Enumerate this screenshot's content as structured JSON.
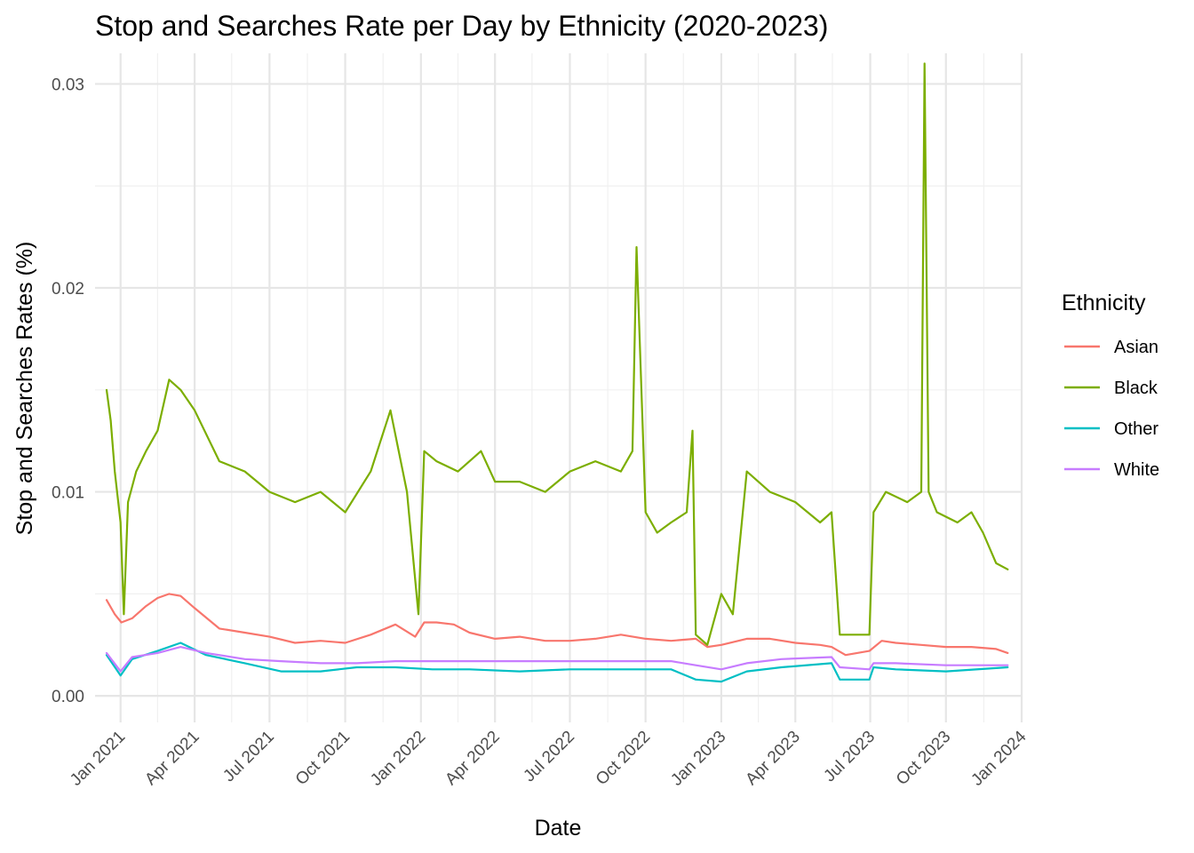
{
  "chart_data": {
    "type": "line",
    "title": "Stop and Searches Rate per Day by Ethnicity (2020-2023)",
    "xlabel": "Date",
    "ylabel": "Stop and Searches Rates (%)",
    "x_range": [
      "2020-12-01",
      "2024-01-01"
    ],
    "ylim": [
      -0.0013,
      0.0315
    ],
    "y_ticks": [
      0.0,
      0.01,
      0.02,
      0.03
    ],
    "y_tick_labels": [
      "0.00",
      "0.01",
      "0.02",
      "0.03"
    ],
    "x_ticks": [
      "2021-01-01",
      "2021-04-01",
      "2021-07-01",
      "2021-10-01",
      "2022-01-01",
      "2022-04-01",
      "2022-07-01",
      "2022-10-01",
      "2023-01-01",
      "2023-04-01",
      "2023-07-01",
      "2023-10-01",
      "2024-01-01"
    ],
    "x_tick_labels": [
      "Jan 2021",
      "Apr 2021",
      "Jul 2021",
      "Oct 2021",
      "Jan 2022",
      "Apr 2022",
      "Jul 2022",
      "Oct 2022",
      "Jan 2023",
      "Apr 2023",
      "Jul 2023",
      "Oct 2023",
      "Jan 2024"
    ],
    "grid": true,
    "legend": {
      "title": "Ethnicity",
      "position": "right"
    },
    "series": [
      {
        "name": "Asian",
        "color": "#F8766D",
        "x": [
          "2020-12-15",
          "2020-12-25",
          "2021-01-02",
          "2021-01-15",
          "2021-02-01",
          "2021-02-15",
          "2021-03-01",
          "2021-03-15",
          "2021-04-01",
          "2021-05-01",
          "2021-06-01",
          "2021-07-01",
          "2021-08-01",
          "2021-09-01",
          "2021-10-01",
          "2021-11-01",
          "2021-12-01",
          "2021-12-25",
          "2022-01-05",
          "2022-01-20",
          "2022-02-10",
          "2022-03-01",
          "2022-04-01",
          "2022-05-01",
          "2022-06-01",
          "2022-07-01",
          "2022-08-01",
          "2022-09-01",
          "2022-10-01",
          "2022-11-01",
          "2022-12-01",
          "2022-12-15",
          "2023-01-01",
          "2023-02-01",
          "2023-03-01",
          "2023-04-01",
          "2023-05-01",
          "2023-05-15",
          "2023-06-01",
          "2023-06-30",
          "2023-07-15",
          "2023-08-01",
          "2023-09-01",
          "2023-10-01",
          "2023-11-01",
          "2023-12-01",
          "2023-12-15"
        ],
        "values": [
          0.0047,
          0.004,
          0.0036,
          0.0038,
          0.0044,
          0.0048,
          0.005,
          0.0049,
          0.0043,
          0.0033,
          0.0031,
          0.0029,
          0.0026,
          0.0027,
          0.0026,
          0.003,
          0.0035,
          0.0029,
          0.0036,
          0.0036,
          0.0035,
          0.0031,
          0.0028,
          0.0029,
          0.0027,
          0.0027,
          0.0028,
          0.003,
          0.0028,
          0.0027,
          0.0028,
          0.0024,
          0.0025,
          0.0028,
          0.0028,
          0.0026,
          0.0025,
          0.0024,
          0.002,
          0.0022,
          0.0027,
          0.0026,
          0.0025,
          0.0024,
          0.0024,
          0.0023,
          0.0021
        ]
      },
      {
        "name": "Black",
        "color": "#7CAE00",
        "x": [
          "2020-12-15",
          "2020-12-20",
          "2020-12-25",
          "2021-01-01",
          "2021-01-05",
          "2021-01-10",
          "2021-01-20",
          "2021-02-01",
          "2021-02-15",
          "2021-03-01",
          "2021-03-15",
          "2021-04-01",
          "2021-05-01",
          "2021-06-01",
          "2021-07-01",
          "2021-08-01",
          "2021-09-01",
          "2021-10-01",
          "2021-11-01",
          "2021-11-25",
          "2021-12-15",
          "2021-12-29",
          "2022-01-05",
          "2022-01-20",
          "2022-02-15",
          "2022-03-15",
          "2022-04-01",
          "2022-05-01",
          "2022-06-01",
          "2022-07-01",
          "2022-08-01",
          "2022-09-01",
          "2022-09-15",
          "2022-09-20",
          "2022-10-01",
          "2022-10-15",
          "2022-11-01",
          "2022-11-20",
          "2022-11-27",
          "2022-12-01",
          "2022-12-15",
          "2023-01-01",
          "2023-01-15",
          "2023-02-01",
          "2023-03-01",
          "2023-04-01",
          "2023-05-01",
          "2023-05-15",
          "2023-05-25",
          "2023-06-10",
          "2023-06-30",
          "2023-07-05",
          "2023-07-20",
          "2023-08-15",
          "2023-09-01",
          "2023-09-05",
          "2023-09-10",
          "2023-09-20",
          "2023-10-15",
          "2023-11-01",
          "2023-11-15",
          "2023-12-01",
          "2023-12-15"
        ],
        "values": [
          0.015,
          0.0135,
          0.011,
          0.0085,
          0.004,
          0.0095,
          0.011,
          0.012,
          0.013,
          0.0155,
          0.015,
          0.014,
          0.0115,
          0.011,
          0.01,
          0.0095,
          0.01,
          0.009,
          0.011,
          0.014,
          0.01,
          0.004,
          0.012,
          0.0115,
          0.011,
          0.012,
          0.0105,
          0.0105,
          0.01,
          0.011,
          0.0115,
          0.011,
          0.012,
          0.022,
          0.009,
          0.008,
          0.0085,
          0.009,
          0.013,
          0.003,
          0.0025,
          0.005,
          0.004,
          0.011,
          0.01,
          0.0095,
          0.0085,
          0.009,
          0.003,
          0.003,
          0.003,
          0.009,
          0.01,
          0.0095,
          0.01,
          0.031,
          0.01,
          0.009,
          0.0085,
          0.009,
          0.008,
          0.0065,
          0.0062
        ]
      },
      {
        "name": "Other",
        "color": "#00BFC4",
        "x": [
          "2020-12-15",
          "2021-01-01",
          "2021-01-15",
          "2021-02-15",
          "2021-03-15",
          "2021-04-15",
          "2021-06-01",
          "2021-07-15",
          "2021-09-01",
          "2021-10-15",
          "2021-12-01",
          "2022-01-15",
          "2022-03-01",
          "2022-05-01",
          "2022-07-01",
          "2022-09-01",
          "2022-11-01",
          "2022-12-01",
          "2023-01-01",
          "2023-02-01",
          "2023-03-15",
          "2023-05-15",
          "2023-05-25",
          "2023-06-30",
          "2023-07-05",
          "2023-08-01",
          "2023-10-01",
          "2023-12-15"
        ],
        "values": [
          0.002,
          0.001,
          0.0018,
          0.0022,
          0.0026,
          0.002,
          0.0016,
          0.0012,
          0.0012,
          0.0014,
          0.0014,
          0.0013,
          0.0013,
          0.0012,
          0.0013,
          0.0013,
          0.0013,
          0.0008,
          0.0007,
          0.0012,
          0.0014,
          0.0016,
          0.0008,
          0.0008,
          0.0014,
          0.0013,
          0.0012,
          0.0014
        ]
      },
      {
        "name": "White",
        "color": "#C77CFF",
        "x": [
          "2020-12-15",
          "2021-01-01",
          "2021-01-15",
          "2021-02-15",
          "2021-03-15",
          "2021-04-15",
          "2021-06-01",
          "2021-07-15",
          "2021-09-01",
          "2021-10-15",
          "2021-12-01",
          "2022-01-15",
          "2022-03-01",
          "2022-05-01",
          "2022-07-01",
          "2022-09-01",
          "2022-11-01",
          "2022-12-01",
          "2023-01-01",
          "2023-02-01",
          "2023-03-15",
          "2023-05-15",
          "2023-05-25",
          "2023-06-30",
          "2023-07-05",
          "2023-08-01",
          "2023-10-01",
          "2023-12-15"
        ],
        "values": [
          0.0021,
          0.0012,
          0.0019,
          0.0021,
          0.0024,
          0.0021,
          0.0018,
          0.0017,
          0.0016,
          0.0016,
          0.0017,
          0.0017,
          0.0017,
          0.0017,
          0.0017,
          0.0017,
          0.0017,
          0.0015,
          0.0013,
          0.0016,
          0.0018,
          0.0019,
          0.0014,
          0.0013,
          0.0016,
          0.0016,
          0.0015,
          0.0015
        ]
      }
    ]
  }
}
